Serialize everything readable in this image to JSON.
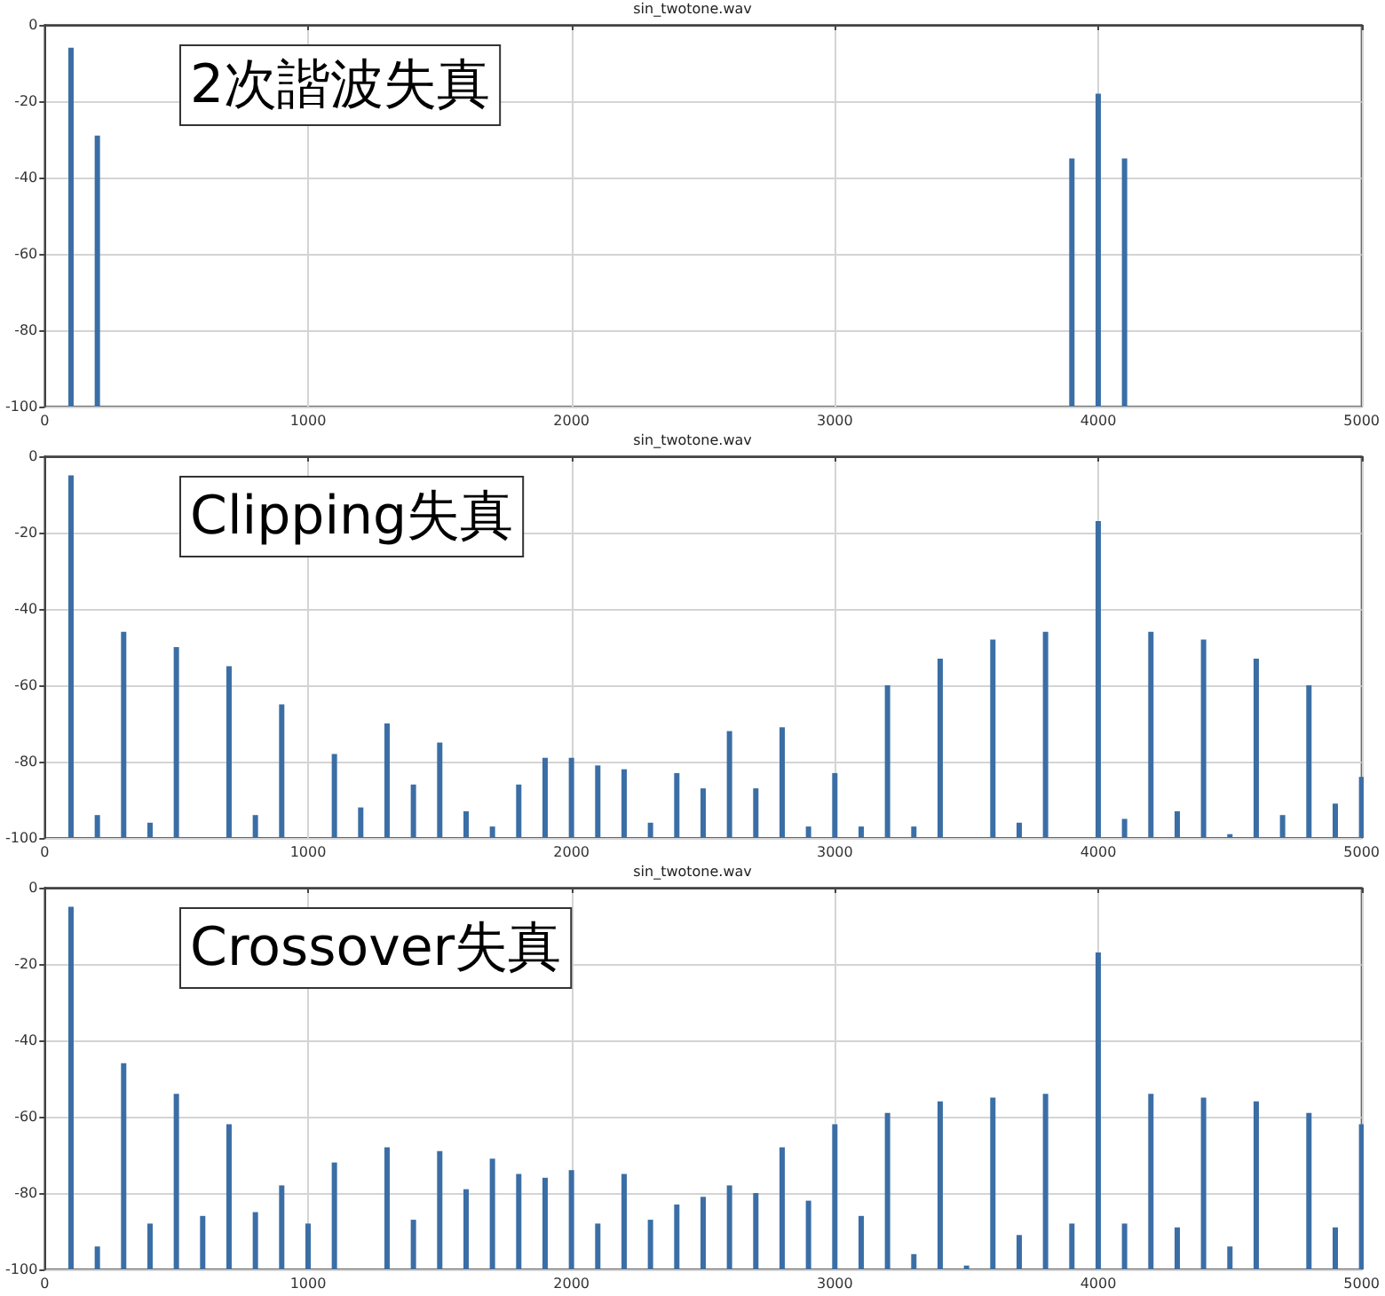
{
  "chart_data": [
    {
      "type": "bar",
      "title": "sin_twotone.wav",
      "annotations": [
        "2次諧波失真"
      ],
      "x": [
        100,
        200,
        3900,
        4000,
        4100
      ],
      "base": [
        -100,
        -100,
        -100,
        -100,
        -100
      ],
      "values": [
        94,
        71,
        65,
        82,
        65
      ],
      "color": "#3b6ea5",
      "xlim": [
        0,
        5000
      ],
      "xticks": [
        0,
        1000,
        2000,
        3000,
        4000,
        5000
      ],
      "ylim": [
        -100,
        0
      ],
      "yticks": [
        -100,
        -80,
        -60,
        -40,
        -20,
        0
      ],
      "grid": true
    },
    {
      "type": "bar",
      "title": "sin_twotone.wav",
      "annotations": [
        "Clipping失真"
      ],
      "x": [
        100,
        200,
        300,
        400,
        500,
        700,
        800,
        900,
        1100,
        1200,
        1300,
        1400,
        1500,
        1600,
        1700,
        1800,
        1900,
        2000,
        2100,
        2200,
        2300,
        2400,
        2500,
        2600,
        2700,
        2800,
        2900,
        3000,
        3100,
        3200,
        3300,
        3400,
        3600,
        3700,
        3800,
        4000,
        4100,
        4200,
        4300,
        4400,
        4500,
        4600,
        4700,
        4800,
        4900,
        5000
      ],
      "base": [
        -100,
        -100,
        -100,
        -100,
        -100,
        -100,
        -100,
        -100,
        -100,
        -100,
        -100,
        -100,
        -100,
        -100,
        -100,
        -100,
        -100,
        -100,
        -100,
        -100,
        -100,
        -100,
        -100,
        -100,
        -100,
        -100,
        -100,
        -100,
        -100,
        -100,
        -100,
        -100,
        -100,
        -100,
        -100,
        -100,
        -100,
        -100,
        -100,
        -100,
        -100,
        -100,
        -100,
        -100,
        -100,
        -100
      ],
      "values": [
        95,
        6,
        54,
        4,
        50,
        45,
        6,
        35,
        22,
        8,
        30,
        14,
        25,
        7,
        3,
        14,
        21,
        21,
        19,
        18,
        4,
        17,
        13,
        28,
        13,
        29,
        3,
        17,
        3,
        40,
        3,
        47,
        52,
        4,
        54,
        83,
        5,
        54,
        7,
        52,
        1,
        47,
        6,
        40,
        9,
        16
      ],
      "color": "#3b6ea5",
      "xlim": [
        0,
        5000
      ],
      "xticks": [
        0,
        1000,
        2000,
        3000,
        4000,
        5000
      ],
      "ylim": [
        -100,
        0
      ],
      "yticks": [
        -100,
        -80,
        -60,
        -40,
        -20,
        0
      ],
      "grid": true
    },
    {
      "type": "bar",
      "title": "sin_twotone.wav",
      "annotations": [
        "Crossover失真"
      ],
      "x": [
        100,
        200,
        300,
        400,
        500,
        600,
        700,
        800,
        900,
        1000,
        1100,
        1300,
        1400,
        1500,
        1600,
        1700,
        1800,
        1900,
        2000,
        2100,
        2200,
        2300,
        2400,
        2500,
        2600,
        2700,
        2800,
        2900,
        3000,
        3100,
        3200,
        3300,
        3400,
        3500,
        3600,
        3700,
        3800,
        3900,
        4000,
        4100,
        4200,
        4300,
        4400,
        4500,
        4600,
        4800,
        4900,
        5000
      ],
      "base": [
        -100,
        -100,
        -100,
        -100,
        -100,
        -100,
        -100,
        -100,
        -100,
        -100,
        -100,
        -100,
        -100,
        -100,
        -100,
        -100,
        -100,
        -100,
        -100,
        -100,
        -100,
        -100,
        -100,
        -100,
        -100,
        -100,
        -100,
        -100,
        -100,
        -100,
        -100,
        -100,
        -100,
        -100,
        -100,
        -100,
        -100,
        -100,
        -100,
        -100,
        -100,
        -100,
        -100,
        -100,
        -100,
        -100,
        -100,
        -100
      ],
      "values": [
        95,
        6,
        54,
        12,
        46,
        14,
        38,
        15,
        22,
        12,
        28,
        32,
        13,
        31,
        21,
        29,
        25,
        24,
        26,
        12,
        25,
        13,
        17,
        19,
        22,
        20,
        32,
        18,
        38,
        14,
        41,
        4,
        44,
        1,
        45,
        9,
        46,
        12,
        83,
        12,
        46,
        11,
        45,
        6,
        44,
        41,
        11,
        38
      ],
      "color": "#3b6ea5",
      "xlim": [
        0,
        5000
      ],
      "xticks": [
        0,
        1000,
        2000,
        3000,
        4000,
        5000
      ],
      "ylim": [
        -100,
        0
      ],
      "yticks": [
        -100,
        -80,
        -60,
        -40,
        -20,
        0
      ],
      "grid": true
    }
  ]
}
